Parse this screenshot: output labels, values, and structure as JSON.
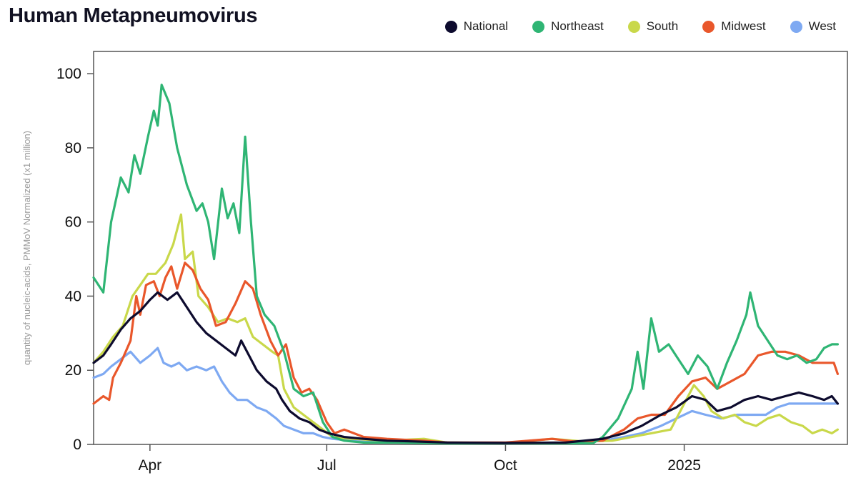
{
  "chart_data": {
    "type": "line",
    "title": "Human Metapneumovirus",
    "ylabel": "quantity of nucleic-acids, PMMoV Normalized (x1 million)",
    "xlabel": "",
    "ylim": [
      0,
      106
    ],
    "xlim": [
      "2024-03-03",
      "2025-03-26"
    ],
    "grid": false,
    "legend_position": "top-right",
    "x_ticks": [
      {
        "date": "2024-04-01",
        "label": "Apr"
      },
      {
        "date": "2024-07-01",
        "label": "Jul"
      },
      {
        "date": "2024-10-01",
        "label": "Oct"
      },
      {
        "date": "2025-01-01",
        "label": "2025"
      }
    ],
    "y_ticks": [
      0,
      20,
      40,
      60,
      80,
      100
    ],
    "series": [
      {
        "name": "National",
        "color": "#0d0b2e",
        "points": [
          [
            "2024-03-03",
            22
          ],
          [
            "2024-03-08",
            24
          ],
          [
            "2024-03-12",
            27
          ],
          [
            "2024-03-17",
            31
          ],
          [
            "2024-03-22",
            34
          ],
          [
            "2024-03-27",
            36
          ],
          [
            "2024-04-01",
            39
          ],
          [
            "2024-04-05",
            41
          ],
          [
            "2024-04-10",
            39
          ],
          [
            "2024-04-15",
            41
          ],
          [
            "2024-04-20",
            37
          ],
          [
            "2024-04-25",
            33
          ],
          [
            "2024-04-30",
            30
          ],
          [
            "2024-05-05",
            28
          ],
          [
            "2024-05-10",
            26
          ],
          [
            "2024-05-15",
            24
          ],
          [
            "2024-05-18",
            28
          ],
          [
            "2024-05-22",
            24
          ],
          [
            "2024-05-26",
            20
          ],
          [
            "2024-05-31",
            17
          ],
          [
            "2024-06-05",
            15
          ],
          [
            "2024-06-08",
            12
          ],
          [
            "2024-06-12",
            9
          ],
          [
            "2024-06-17",
            7
          ],
          [
            "2024-06-22",
            6
          ],
          [
            "2024-06-27",
            4
          ],
          [
            "2024-07-02",
            3
          ],
          [
            "2024-07-10",
            2
          ],
          [
            "2024-07-20",
            1.5
          ],
          [
            "2024-08-01",
            1
          ],
          [
            "2024-08-15",
            0.8
          ],
          [
            "2024-09-01",
            0.5
          ],
          [
            "2024-10-01",
            0.4
          ],
          [
            "2024-11-01",
            0.5
          ],
          [
            "2024-11-20",
            1.5
          ],
          [
            "2024-12-01",
            3
          ],
          [
            "2024-12-10",
            5
          ],
          [
            "2024-12-20",
            8
          ],
          [
            "2024-12-28",
            10
          ],
          [
            "2025-01-05",
            13
          ],
          [
            "2025-01-12",
            12
          ],
          [
            "2025-01-18",
            9
          ],
          [
            "2025-01-25",
            10
          ],
          [
            "2025-02-01",
            12
          ],
          [
            "2025-02-08",
            13
          ],
          [
            "2025-02-15",
            12
          ],
          [
            "2025-02-22",
            13
          ],
          [
            "2025-03-01",
            14
          ],
          [
            "2025-03-08",
            13
          ],
          [
            "2025-03-14",
            12
          ],
          [
            "2025-03-18",
            13
          ],
          [
            "2025-03-21",
            11
          ]
        ]
      },
      {
        "name": "Northeast",
        "color": "#2fb574",
        "points": [
          [
            "2024-03-03",
            45
          ],
          [
            "2024-03-08",
            41
          ],
          [
            "2024-03-12",
            60
          ],
          [
            "2024-03-17",
            72
          ],
          [
            "2024-03-21",
            68
          ],
          [
            "2024-03-24",
            78
          ],
          [
            "2024-03-27",
            73
          ],
          [
            "2024-03-31",
            83
          ],
          [
            "2024-04-03",
            90
          ],
          [
            "2024-04-05",
            86
          ],
          [
            "2024-04-07",
            97
          ],
          [
            "2024-04-11",
            92
          ],
          [
            "2024-04-15",
            80
          ],
          [
            "2024-04-20",
            70
          ],
          [
            "2024-04-25",
            63
          ],
          [
            "2024-04-28",
            65
          ],
          [
            "2024-05-01",
            60
          ],
          [
            "2024-05-04",
            50
          ],
          [
            "2024-05-08",
            69
          ],
          [
            "2024-05-11",
            61
          ],
          [
            "2024-05-14",
            65
          ],
          [
            "2024-05-17",
            57
          ],
          [
            "2024-05-20",
            83
          ],
          [
            "2024-05-23",
            60
          ],
          [
            "2024-05-26",
            40
          ],
          [
            "2024-05-30",
            35
          ],
          [
            "2024-06-04",
            32
          ],
          [
            "2024-06-09",
            25
          ],
          [
            "2024-06-14",
            15
          ],
          [
            "2024-06-19",
            13
          ],
          [
            "2024-06-24",
            14
          ],
          [
            "2024-06-29",
            6
          ],
          [
            "2024-07-04",
            2
          ],
          [
            "2024-07-10",
            1
          ],
          [
            "2024-07-20",
            0.5
          ],
          [
            "2024-08-05",
            0.5
          ],
          [
            "2024-09-01",
            0.3
          ],
          [
            "2024-10-01",
            0.3
          ],
          [
            "2024-11-15",
            0.3
          ],
          [
            "2024-11-20",
            2
          ],
          [
            "2024-11-28",
            7
          ],
          [
            "2024-12-05",
            15
          ],
          [
            "2024-12-08",
            25
          ],
          [
            "2024-12-11",
            15
          ],
          [
            "2024-12-15",
            34
          ],
          [
            "2024-12-19",
            25
          ],
          [
            "2024-12-24",
            27
          ],
          [
            "2024-12-29",
            23
          ],
          [
            "2025-01-03",
            19
          ],
          [
            "2025-01-08",
            24
          ],
          [
            "2025-01-13",
            21
          ],
          [
            "2025-01-18",
            15
          ],
          [
            "2025-01-23",
            22
          ],
          [
            "2025-01-28",
            28
          ],
          [
            "2025-02-02",
            35
          ],
          [
            "2025-02-04",
            41
          ],
          [
            "2025-02-08",
            32
          ],
          [
            "2025-02-13",
            28
          ],
          [
            "2025-02-18",
            24
          ],
          [
            "2025-02-23",
            23
          ],
          [
            "2025-02-28",
            24
          ],
          [
            "2025-03-05",
            22
          ],
          [
            "2025-03-10",
            23
          ],
          [
            "2025-03-14",
            26
          ],
          [
            "2025-03-18",
            27
          ],
          [
            "2025-03-21",
            27
          ]
        ]
      },
      {
        "name": "South",
        "color": "#c9d84a",
        "points": [
          [
            "2024-03-03",
            22
          ],
          [
            "2024-03-08",
            25
          ],
          [
            "2024-03-13",
            29
          ],
          [
            "2024-03-18",
            32
          ],
          [
            "2024-03-23",
            40
          ],
          [
            "2024-03-27",
            43
          ],
          [
            "2024-03-31",
            46
          ],
          [
            "2024-04-04",
            46
          ],
          [
            "2024-04-09",
            49
          ],
          [
            "2024-04-13",
            54
          ],
          [
            "2024-04-17",
            62
          ],
          [
            "2024-04-19",
            50
          ],
          [
            "2024-04-23",
            52
          ],
          [
            "2024-04-26",
            40
          ],
          [
            "2024-05-01",
            37
          ],
          [
            "2024-05-06",
            33
          ],
          [
            "2024-05-11",
            34
          ],
          [
            "2024-05-16",
            33
          ],
          [
            "2024-05-20",
            34
          ],
          [
            "2024-05-24",
            29
          ],
          [
            "2024-05-29",
            27
          ],
          [
            "2024-06-03",
            25
          ],
          [
            "2024-06-06",
            24
          ],
          [
            "2024-06-09",
            15
          ],
          [
            "2024-06-14",
            10
          ],
          [
            "2024-06-19",
            8
          ],
          [
            "2024-06-24",
            6
          ],
          [
            "2024-06-29",
            4
          ],
          [
            "2024-07-04",
            2
          ],
          [
            "2024-07-14",
            1.5
          ],
          [
            "2024-08-01",
            1
          ],
          [
            "2024-08-20",
            1.5
          ],
          [
            "2024-09-01",
            0.5
          ],
          [
            "2024-10-01",
            0.4
          ],
          [
            "2024-10-25",
            1.5
          ],
          [
            "2024-11-10",
            0.8
          ],
          [
            "2024-11-25",
            1
          ],
          [
            "2024-12-05",
            2
          ],
          [
            "2024-12-15",
            3
          ],
          [
            "2024-12-25",
            4
          ],
          [
            "2025-01-02",
            12
          ],
          [
            "2025-01-06",
            16
          ],
          [
            "2025-01-11",
            13
          ],
          [
            "2025-01-15",
            9
          ],
          [
            "2025-01-21",
            7
          ],
          [
            "2025-01-27",
            8
          ],
          [
            "2025-02-01",
            6
          ],
          [
            "2025-02-07",
            5
          ],
          [
            "2025-02-13",
            7
          ],
          [
            "2025-02-19",
            8
          ],
          [
            "2025-02-25",
            6
          ],
          [
            "2025-03-03",
            5
          ],
          [
            "2025-03-08",
            3
          ],
          [
            "2025-03-13",
            4
          ],
          [
            "2025-03-18",
            3
          ],
          [
            "2025-03-21",
            4
          ]
        ]
      },
      {
        "name": "Midwest",
        "color": "#e9572b",
        "points": [
          [
            "2024-03-03",
            11
          ],
          [
            "2024-03-08",
            13
          ],
          [
            "2024-03-11",
            12
          ],
          [
            "2024-03-13",
            18
          ],
          [
            "2024-03-17",
            22
          ],
          [
            "2024-03-22",
            28
          ],
          [
            "2024-03-25",
            40
          ],
          [
            "2024-03-27",
            35
          ],
          [
            "2024-03-30",
            43
          ],
          [
            "2024-04-03",
            44
          ],
          [
            "2024-04-06",
            40
          ],
          [
            "2024-04-09",
            45
          ],
          [
            "2024-04-12",
            48
          ],
          [
            "2024-04-15",
            42
          ],
          [
            "2024-04-19",
            49
          ],
          [
            "2024-04-23",
            47
          ],
          [
            "2024-04-27",
            42
          ],
          [
            "2024-05-01",
            39
          ],
          [
            "2024-05-05",
            32
          ],
          [
            "2024-05-10",
            33
          ],
          [
            "2024-05-15",
            38
          ],
          [
            "2024-05-20",
            44
          ],
          [
            "2024-05-24",
            42
          ],
          [
            "2024-05-28",
            35
          ],
          [
            "2024-06-02",
            28
          ],
          [
            "2024-06-06",
            24
          ],
          [
            "2024-06-10",
            27
          ],
          [
            "2024-06-14",
            18
          ],
          [
            "2024-06-18",
            14
          ],
          [
            "2024-06-22",
            15
          ],
          [
            "2024-06-26",
            12
          ],
          [
            "2024-07-01",
            6
          ],
          [
            "2024-07-05",
            3
          ],
          [
            "2024-07-10",
            4
          ],
          [
            "2024-07-20",
            2
          ],
          [
            "2024-08-01",
            1.5
          ],
          [
            "2024-08-20",
            1
          ],
          [
            "2024-09-01",
            0.5
          ],
          [
            "2024-10-01",
            0.5
          ],
          [
            "2024-10-25",
            1.5
          ],
          [
            "2024-11-05",
            0.8
          ],
          [
            "2024-11-20",
            1
          ],
          [
            "2024-12-01",
            4
          ],
          [
            "2024-12-08",
            7
          ],
          [
            "2024-12-15",
            8
          ],
          [
            "2024-12-22",
            8
          ],
          [
            "2024-12-29",
            13
          ],
          [
            "2025-01-05",
            17
          ],
          [
            "2025-01-12",
            18
          ],
          [
            "2025-01-18",
            15
          ],
          [
            "2025-01-25",
            17
          ],
          [
            "2025-02-01",
            19
          ],
          [
            "2025-02-08",
            24
          ],
          [
            "2025-02-15",
            25
          ],
          [
            "2025-02-22",
            25
          ],
          [
            "2025-03-01",
            24
          ],
          [
            "2025-03-08",
            22
          ],
          [
            "2025-03-14",
            22
          ],
          [
            "2025-03-19",
            22
          ],
          [
            "2025-03-21",
            19
          ]
        ]
      },
      {
        "name": "West",
        "color": "#7ea9f2",
        "points": [
          [
            "2024-03-03",
            18
          ],
          [
            "2024-03-08",
            19
          ],
          [
            "2024-03-12",
            21
          ],
          [
            "2024-03-17",
            23
          ],
          [
            "2024-03-22",
            25
          ],
          [
            "2024-03-27",
            22
          ],
          [
            "2024-04-01",
            24
          ],
          [
            "2024-04-05",
            26
          ],
          [
            "2024-04-08",
            22
          ],
          [
            "2024-04-12",
            21
          ],
          [
            "2024-04-16",
            22
          ],
          [
            "2024-04-20",
            20
          ],
          [
            "2024-04-25",
            21
          ],
          [
            "2024-04-30",
            20
          ],
          [
            "2024-05-04",
            21
          ],
          [
            "2024-05-08",
            17
          ],
          [
            "2024-05-12",
            14
          ],
          [
            "2024-05-16",
            12
          ],
          [
            "2024-05-21",
            12
          ],
          [
            "2024-05-26",
            10
          ],
          [
            "2024-05-31",
            9
          ],
          [
            "2024-06-05",
            7
          ],
          [
            "2024-06-09",
            5
          ],
          [
            "2024-06-14",
            4
          ],
          [
            "2024-06-19",
            3
          ],
          [
            "2024-06-24",
            3
          ],
          [
            "2024-06-29",
            2
          ],
          [
            "2024-07-04",
            1.5
          ],
          [
            "2024-07-14",
            1
          ],
          [
            "2024-08-01",
            0.8
          ],
          [
            "2024-09-01",
            0.5
          ],
          [
            "2024-10-01",
            0.3
          ],
          [
            "2024-11-01",
            0.3
          ],
          [
            "2024-11-20",
            1
          ],
          [
            "2024-12-01",
            2
          ],
          [
            "2024-12-10",
            3
          ],
          [
            "2024-12-20",
            5
          ],
          [
            "2024-12-28",
            7
          ],
          [
            "2025-01-05",
            9
          ],
          [
            "2025-01-12",
            8
          ],
          [
            "2025-01-20",
            7
          ],
          [
            "2025-01-28",
            8
          ],
          [
            "2025-02-05",
            8
          ],
          [
            "2025-02-12",
            8
          ],
          [
            "2025-02-18",
            10
          ],
          [
            "2025-02-24",
            11
          ],
          [
            "2025-03-02",
            11
          ],
          [
            "2025-03-08",
            11
          ],
          [
            "2025-03-14",
            11
          ],
          [
            "2025-03-21",
            11
          ]
        ]
      }
    ]
  }
}
